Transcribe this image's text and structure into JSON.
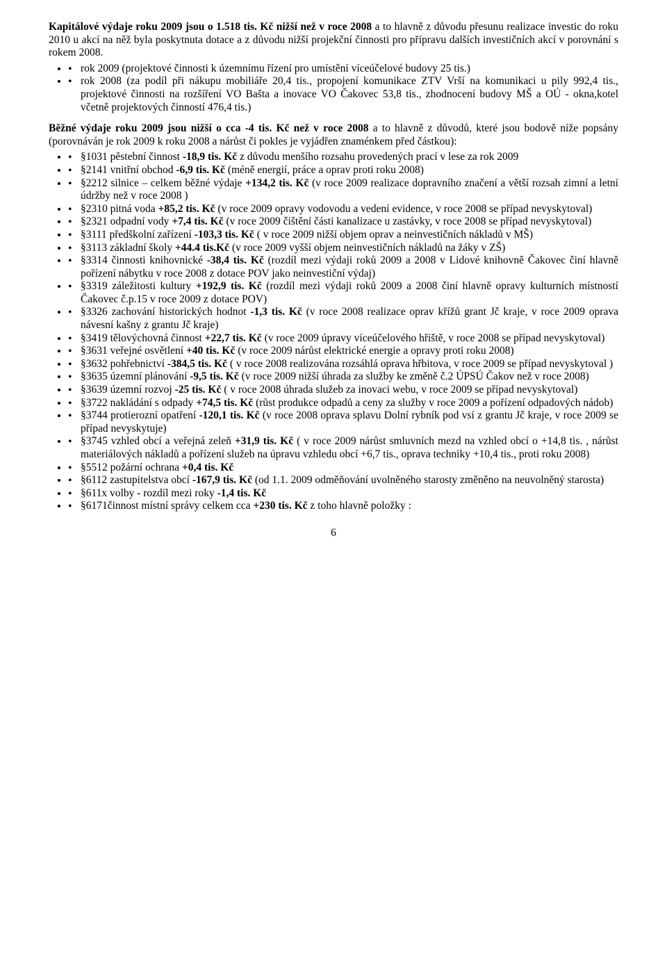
{
  "p1_lead": "Kapitálové výdaje  roku 2009   jsou  o 1.518 tis. Kč nižší než v roce 2008",
  "p1_rest": " a to hlavně z důvodu přesunu realizace investic do roku 2010 u akcí  na něž byla poskytnuta dotace a z důvodu nižší projekční činnosti pro přípravu dalších investičních akcí v porovnání s rokem 2008.",
  "list1": [
    "rok 2009 (projektové činnosti k územnímu řízení pro umístění víceúčelové budovy 25 tis.)",
    "rok 2008 (za podíl při nákupu mobiliáře 20,4 tis., propojení komunikace ZTV Vrší na komunikaci u pily 992,4 tis., projektové činnosti na rozšíření VO Bašta a inovace VO Čakovec 53,8 tis., zhodnocení budovy MŠ a OÚ - okna,kotel včetně projektových činností 476,4 tis.)"
  ],
  "p2_lead": "Běžné výdaje roku 2009 jsou nižší o cca -4 tis. Kč než v roce 2008",
  "p2_rest": " a to hlavně z důvodů, které jsou bodově níže popsány (porovnáván je rok 2009 k roku 2008 a nárůst či pokles je vyjádřen znaménkem před částkou):",
  "list2": [
    {
      "pre": "§1031 pěstební činnost ",
      "bold": "-18,9 tis. Kč",
      "post": " z důvodu menšího rozsahu provedených prací v lese za rok 2009"
    },
    {
      "pre": "§2141 vnitřní obchod ",
      "bold": "-6,9 tis. Kč",
      "post": " (méně energií, práce a oprav proti roku 2008)"
    },
    {
      "pre": "§2212 silnice – celkem běžné výdaje ",
      "bold": "+134,2 tis. Kč",
      "post": "  (v roce 2009 realizace dopravního značení a větší rozsah zimní a letní údržby než v roce 2008 )"
    },
    {
      "pre": "§2310 pitná voda ",
      "bold": "+85,2 tis. Kč",
      "post": " (v roce 2009 opravy vodovodu a vedení evidence, v roce 2008 se případ nevyskytoval)"
    },
    {
      "pre": "§2321 odpadní vody  ",
      "bold": "+7,4 tis. Kč",
      "post": " (v roce 2009 čištění části kanalizace u zastávky, v roce 2008 se případ nevyskytoval)"
    },
    {
      "pre": "§3111  předškolní zařízení ",
      "bold": "-103,3 tis. Kč",
      "post": " ( v roce 2009 nižší objem oprav a neinvestičních nákladů v MŠ)"
    },
    {
      "pre": "§3113 základní školy ",
      "bold": "+44.4 tis.Kč",
      "post": " (v roce 2009 vyšší objem neinvestičních nákladů na žáky v ZŠ)"
    },
    {
      "pre": "§3314 činnosti knihovnické ",
      "bold": "-38,4 tis. Kč",
      "post": " (rozdíl mezi výdaji roků 2009 a 2008 v Lidové knihovně Čakovec činí hlavně pořízení nábytku v roce 2008 z dotace POV jako neinvestiční výdaj)"
    },
    {
      "pre": "§3319 záležitosti kultury ",
      "bold": "+192,9 tis. Kč",
      "post": " (rozdíl mezi výdaji roků 2009 a 2008  činí hlavně opravy kulturních místností Čakovec č.p.15 v roce 2009 z dotace POV)"
    },
    {
      "pre": "§3326 zachování historických hodnot ",
      "bold": "-1,3 tis. Kč",
      "post": " (v roce 2008 realizace oprav křížů grant Jč kraje, v roce 2009 oprava návesní kašny z grantu Jč kraje)"
    },
    {
      "pre": "§3419 tělovýchovná činnost ",
      "bold": "+22,7 tis. Kč",
      "post": " (v roce 2009 úpravy víceúčelového hřiště, v roce 2008 se případ nevyskytoval)"
    },
    {
      "pre": "§3631 veřejné osvětlení ",
      "bold": "+40 tis. Kč",
      "post": " (v roce 2009  nárůst elektrické energie a opravy proti roku 2008)"
    },
    {
      "pre": "§3632 pohřebnictví  ",
      "bold": "-384,5 tis. Kč",
      "post": " ( v roce 2008 realizována rozsáhlá oprava hřbitova, v roce 2009 se případ nevyskytoval )"
    },
    {
      "pre": "§3635 územní plánování ",
      "bold": "-9,5 tis. Kč",
      "post": " (v roce 2009 nižší úhrada za služby ke změně č.2 ÚPSÚ Čakov než v roce 2008)"
    },
    {
      "pre": "§3639 územní rozvoj ",
      "bold": "-25 tis. Kč",
      "post": " ( v roce 2008 úhrada služeb za inovaci webu, v roce 2009 se případ nevyskytoval)"
    },
    {
      "pre": "§3722 nakládání s odpady ",
      "bold": "+74,5 tis. Kč",
      "post": " (růst produkce odpadů a ceny za služby v roce 2009 a pořízení odpadových nádob)"
    },
    {
      "pre": "§3744 protierozní opatření ",
      "bold": "-120,1 tis. Kč",
      "post": " (v roce 2008 oprava splavu Dolní rybník pod vsí z grantu Jč kraje, v roce 2009 se případ nevyskytuje)"
    },
    {
      "pre": "§3745 vzhled obcí a veřejná zeleň ",
      "bold": "+31,9 tis. Kč",
      "post": " ( v roce 2009 nárůst smluvních mezd na vzhled obcí o +14,8 tis. , nárůst materiálových nákladů a pořízení služeb na úpravu vzhledu obcí +6,7 tis., oprava techniky +10,4 tis., proti roku 2008)"
    },
    {
      "pre": "§5512 požární ochrana ",
      "bold": "+0,4 tis. Kč",
      "post": ""
    },
    {
      "pre": "§6112 zastupitelstva obcí ",
      "bold": "-167,9 tis. Kč",
      "post": " (od 1.1. 2009 odměňování uvolněného starosty změněno na neuvolněný starosta)"
    },
    {
      "pre": "§611x volby - rozdíl mezi roky ",
      "bold": "-1,4 tis. Kč",
      "post": ""
    },
    {
      "pre": "§6171činnost místní správy celkem cca ",
      "bold": "+230 tis. Kč",
      "post": " z toho hlavně položky :"
    }
  ],
  "page_number": "6"
}
